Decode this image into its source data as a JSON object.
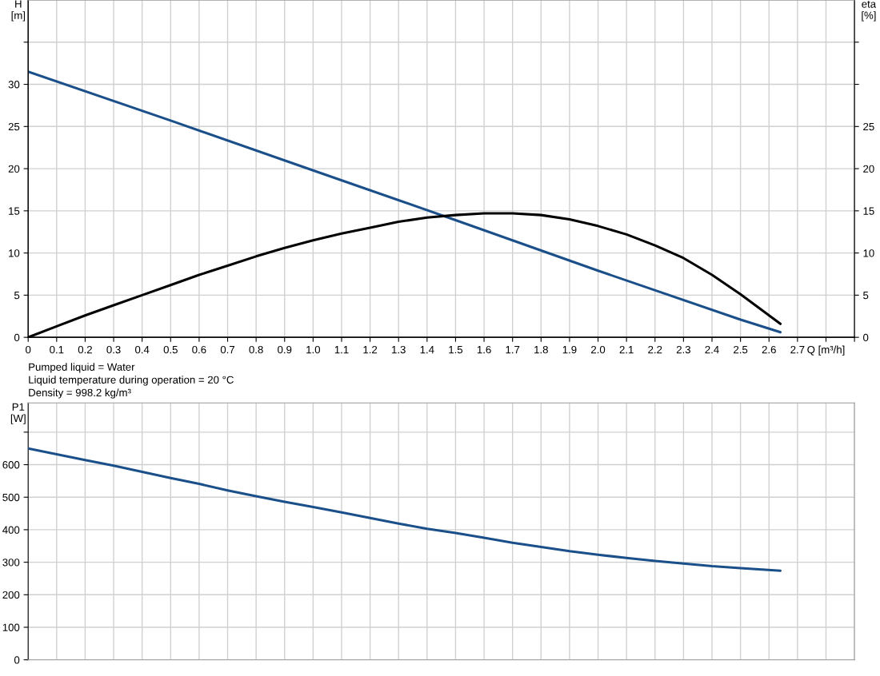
{
  "chart_data": [
    {
      "type": "line",
      "ylabel": "H\n[m]",
      "y2label": "eta\n[%]",
      "xlim": [
        0,
        2.9
      ],
      "xticks": [
        0,
        0.1,
        0.2,
        0.3,
        0.4,
        0.5,
        0.6,
        0.7,
        0.8,
        0.9,
        {
          "value": 1.0,
          "label": "1.0"
        },
        1.1,
        1.2,
        1.3,
        1.4,
        1.5,
        1.6,
        1.7,
        1.8,
        1.9,
        {
          "value": 2.0,
          "label": "2.0"
        },
        2.1,
        2.2,
        2.3,
        2.4,
        2.5,
        2.6,
        2.7,
        {
          "value": 2.8,
          "label": "Q [m³/h]"
        },
        {
          "value": 2.9,
          "label": null
        }
      ],
      "ylim": [
        0,
        40
      ],
      "yticks": [
        0,
        5,
        10,
        15,
        20,
        25,
        30,
        {
          "value": 35,
          "label": null
        }
      ],
      "y2lim": [
        0,
        40
      ],
      "y2ticks": [
        0,
        5,
        10,
        15,
        20,
        25,
        {
          "value": 30,
          "label": null
        },
        {
          "value": 35,
          "label": null
        }
      ],
      "grid": true,
      "annotations": [
        "Pumped liquid = Water",
        "Liquid temperature during operation = 20 °C",
        "Density = 998.2 kg/m³"
      ],
      "series": [
        {
          "color": "#1a4f8a",
          "x": [
            0,
            0.5,
            1.0,
            1.5,
            2.0,
            2.5,
            2.64
          ],
          "values": [
            31.5,
            25.7,
            19.8,
            13.9,
            7.9,
            2.1,
            0.6
          ]
        },
        {
          "color": "#000000",
          "x": [
            0,
            0.1,
            0.2,
            0.3,
            0.4,
            0.5,
            0.6,
            0.7,
            0.8,
            0.9,
            1.0,
            1.1,
            1.2,
            1.3,
            1.4,
            1.5,
            1.6,
            1.7,
            1.8,
            1.9,
            2.0,
            2.1,
            2.2,
            2.3,
            2.4,
            2.5,
            2.64
          ],
          "values": [
            0,
            1.3,
            2.6,
            3.8,
            5.0,
            6.2,
            7.4,
            8.5,
            9.6,
            10.6,
            11.5,
            12.3,
            13.0,
            13.7,
            14.2,
            14.5,
            14.7,
            14.7,
            14.5,
            14.0,
            13.2,
            12.2,
            10.9,
            9.4,
            7.4,
            5.1,
            1.6
          ]
        }
      ]
    },
    {
      "type": "line",
      "ylabel": "P1\n[W]",
      "tick_labels": "y",
      "xlim": [
        0,
        2.9
      ],
      "xticks": [
        0,
        0.1,
        0.2,
        0.3,
        0.4,
        0.5,
        0.6,
        0.7,
        0.8,
        0.9,
        1.0,
        1.1,
        1.2,
        1.3,
        1.4,
        1.5,
        1.6,
        1.7,
        1.8,
        1.9,
        2.0,
        2.1,
        2.2,
        2.3,
        2.4,
        2.5,
        2.6,
        2.7,
        2.8,
        2.9
      ],
      "ylim": [
        0,
        790
      ],
      "yticks": [
        0,
        100,
        200,
        300,
        400,
        500,
        600,
        {
          "value": 700,
          "label": null
        }
      ],
      "grid": true,
      "series": [
        {
          "color": "#1a4f8a",
          "x": [
            0,
            0.1,
            0.2,
            0.3,
            0.4,
            0.5,
            0.6,
            0.7,
            0.8,
            0.9,
            1.0,
            1.1,
            1.2,
            1.3,
            1.4,
            1.5,
            1.6,
            1.7,
            1.8,
            1.9,
            2.0,
            2.1,
            2.2,
            2.3,
            2.4,
            2.5,
            2.64
          ],
          "values": [
            650,
            632,
            614,
            597,
            578,
            559,
            541,
            521,
            503,
            486,
            470,
            453,
            436,
            419,
            403,
            390,
            375,
            360,
            347,
            334,
            323,
            313,
            304,
            296,
            288,
            282,
            274
          ]
        }
      ]
    }
  ]
}
